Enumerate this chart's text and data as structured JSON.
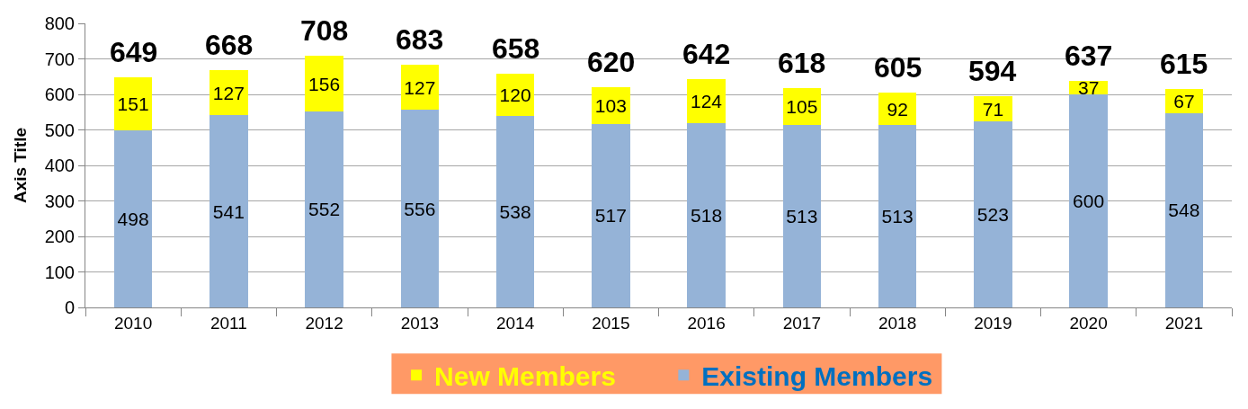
{
  "chart_data": {
    "type": "bar",
    "stacked": true,
    "ylabel": "Axis Title",
    "categories": [
      "2010",
      "2011",
      "2012",
      "2013",
      "2014",
      "2015",
      "2016",
      "2017",
      "2018",
      "2019",
      "2020",
      "2021"
    ],
    "series": [
      {
        "name": "Existing Members",
        "color": "#95b3d7",
        "values": [
          498,
          541,
          552,
          556,
          538,
          517,
          518,
          513,
          513,
          523,
          600,
          548
        ]
      },
      {
        "name": "New Members",
        "color": "#ffff00",
        "values": [
          151,
          127,
          156,
          127,
          120,
          103,
          124,
          105,
          92,
          71,
          37,
          67
        ]
      }
    ],
    "totals": [
      "649",
      "668",
      "708",
      "683",
      "658",
      "620",
      "642",
      "618",
      "605",
      "594",
      "637",
      "615"
    ],
    "ylim": [
      0,
      800
    ],
    "yticks": [
      0,
      100,
      200,
      300,
      400,
      500,
      600,
      700,
      800
    ],
    "grid": "y",
    "legend": "bottom",
    "data_labels": true
  }
}
